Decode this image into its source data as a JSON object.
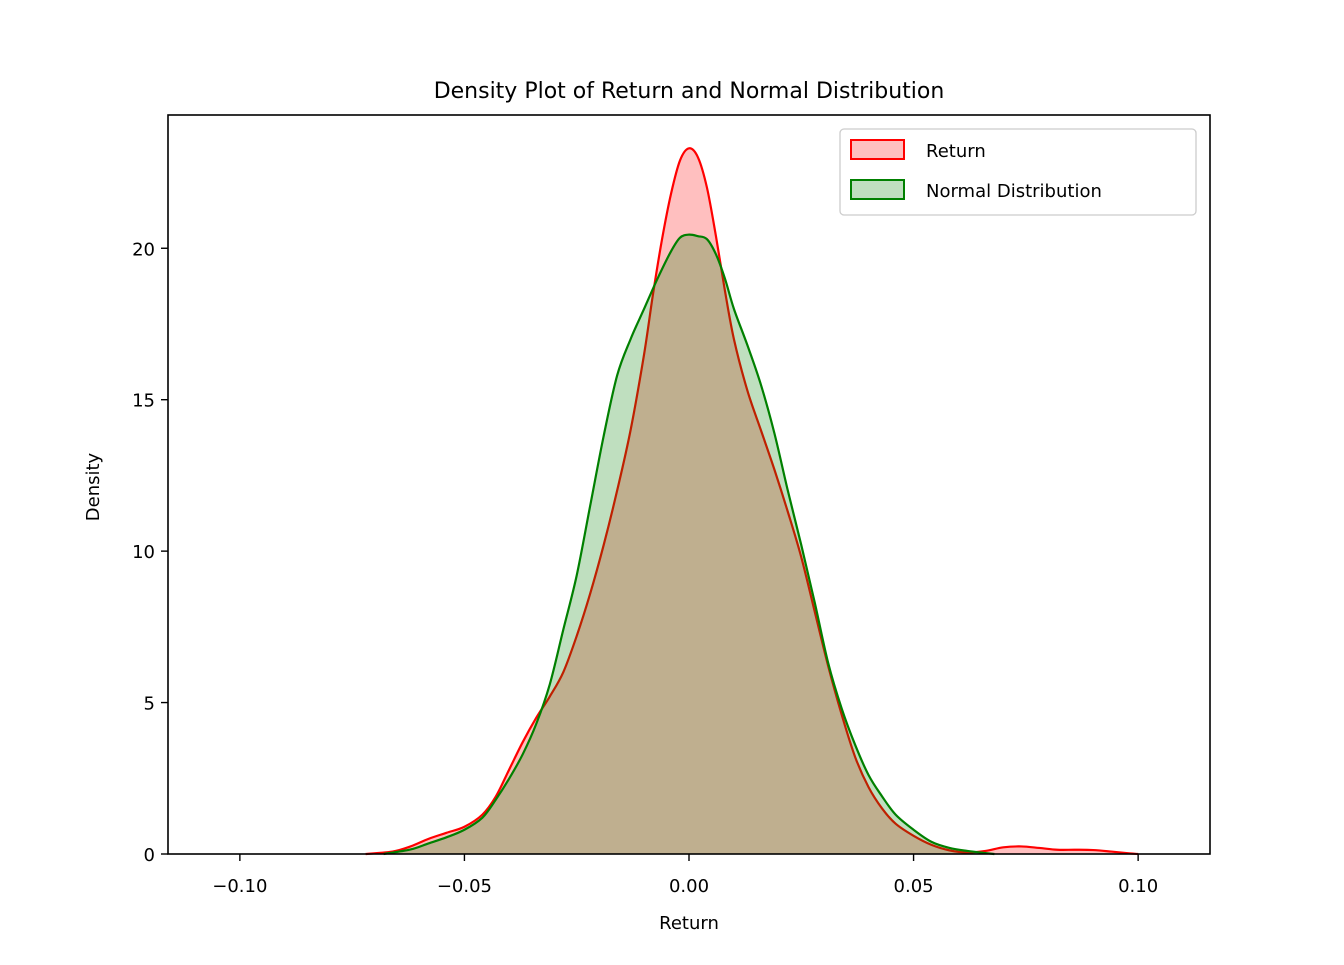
{
  "chart_data": {
    "type": "area",
    "title": "Density Plot of Return and Normal Distribution",
    "xlabel": "Return",
    "ylabel": "Density",
    "xlim": [
      -0.116,
      0.116
    ],
    "ylim": [
      0,
      24.4
    ],
    "grid": false,
    "legend_position": "top-right",
    "xticks": [
      {
        "value": -0.1,
        "label": "−0.10"
      },
      {
        "value": -0.05,
        "label": "−0.05"
      },
      {
        "value": 0.0,
        "label": "0.00"
      },
      {
        "value": 0.05,
        "label": "0.05"
      },
      {
        "value": 0.1,
        "label": "0.10"
      }
    ],
    "yticks": [
      {
        "value": 0,
        "label": "0"
      },
      {
        "value": 5,
        "label": "5"
      },
      {
        "value": 10,
        "label": "10"
      },
      {
        "value": 15,
        "label": "15"
      },
      {
        "value": 20,
        "label": "20"
      }
    ],
    "series": [
      {
        "name": "Return",
        "color": "#ff0000",
        "fill_color": "#ff0000",
        "fill_opacity": 0.25,
        "points": [
          [
            -0.072,
            0.0
          ],
          [
            -0.066,
            0.08
          ],
          [
            -0.062,
            0.25
          ],
          [
            -0.058,
            0.5
          ],
          [
            -0.054,
            0.7
          ],
          [
            -0.05,
            0.9
          ],
          [
            -0.046,
            1.3
          ],
          [
            -0.043,
            1.9
          ],
          [
            -0.04,
            2.8
          ],
          [
            -0.037,
            3.7
          ],
          [
            -0.034,
            4.5
          ],
          [
            -0.031,
            5.2
          ],
          [
            -0.028,
            6.0
          ],
          [
            -0.025,
            7.2
          ],
          [
            -0.022,
            8.6
          ],
          [
            -0.019,
            10.2
          ],
          [
            -0.016,
            12.0
          ],
          [
            -0.013,
            14.0
          ],
          [
            -0.01,
            16.5
          ],
          [
            -0.008,
            18.5
          ],
          [
            -0.006,
            20.3
          ],
          [
            -0.004,
            21.8
          ],
          [
            -0.002,
            22.9
          ],
          [
            0.0,
            23.3
          ],
          [
            0.002,
            23.0
          ],
          [
            0.004,
            22.0
          ],
          [
            0.006,
            20.4
          ],
          [
            0.008,
            18.6
          ],
          [
            0.01,
            17.0
          ],
          [
            0.013,
            15.3
          ],
          [
            0.016,
            14.0
          ],
          [
            0.019,
            12.7
          ],
          [
            0.022,
            11.3
          ],
          [
            0.025,
            9.8
          ],
          [
            0.028,
            8.0
          ],
          [
            0.031,
            6.2
          ],
          [
            0.034,
            4.6
          ],
          [
            0.037,
            3.2
          ],
          [
            0.04,
            2.2
          ],
          [
            0.043,
            1.5
          ],
          [
            0.046,
            1.0
          ],
          [
            0.05,
            0.6
          ],
          [
            0.054,
            0.3
          ],
          [
            0.058,
            0.12
          ],
          [
            0.062,
            0.05
          ],
          [
            0.066,
            0.1
          ],
          [
            0.07,
            0.22
          ],
          [
            0.074,
            0.25
          ],
          [
            0.078,
            0.2
          ],
          [
            0.082,
            0.14
          ],
          [
            0.086,
            0.14
          ],
          [
            0.09,
            0.13
          ],
          [
            0.094,
            0.08
          ],
          [
            0.098,
            0.02
          ],
          [
            0.1,
            0.0
          ]
        ]
      },
      {
        "name": "Normal Distribution",
        "color": "#008000",
        "fill_color": "#008000",
        "fill_opacity": 0.25,
        "points": [
          [
            -0.068,
            0.0
          ],
          [
            -0.062,
            0.15
          ],
          [
            -0.058,
            0.35
          ],
          [
            -0.054,
            0.55
          ],
          [
            -0.05,
            0.8
          ],
          [
            -0.046,
            1.2
          ],
          [
            -0.043,
            1.8
          ],
          [
            -0.04,
            2.5
          ],
          [
            -0.037,
            3.3
          ],
          [
            -0.034,
            4.3
          ],
          [
            -0.031,
            5.6
          ],
          [
            -0.028,
            7.4
          ],
          [
            -0.025,
            9.2
          ],
          [
            -0.022,
            11.5
          ],
          [
            -0.019,
            13.8
          ],
          [
            -0.016,
            15.8
          ],
          [
            -0.013,
            17.0
          ],
          [
            -0.01,
            18.0
          ],
          [
            -0.007,
            19.0
          ],
          [
            -0.004,
            19.9
          ],
          [
            -0.002,
            20.35
          ],
          [
            0.0,
            20.45
          ],
          [
            0.002,
            20.4
          ],
          [
            0.004,
            20.3
          ],
          [
            0.006,
            19.8
          ],
          [
            0.008,
            19.0
          ],
          [
            0.01,
            18.0
          ],
          [
            0.013,
            16.8
          ],
          [
            0.016,
            15.5
          ],
          [
            0.019,
            13.9
          ],
          [
            0.022,
            12.0
          ],
          [
            0.025,
            10.2
          ],
          [
            0.028,
            8.3
          ],
          [
            0.031,
            6.3
          ],
          [
            0.034,
            4.8
          ],
          [
            0.037,
            3.6
          ],
          [
            0.04,
            2.6
          ],
          [
            0.043,
            1.9
          ],
          [
            0.046,
            1.3
          ],
          [
            0.05,
            0.8
          ],
          [
            0.054,
            0.4
          ],
          [
            0.058,
            0.2
          ],
          [
            0.062,
            0.1
          ],
          [
            0.066,
            0.03
          ],
          [
            0.068,
            0.0
          ]
        ]
      }
    ]
  }
}
